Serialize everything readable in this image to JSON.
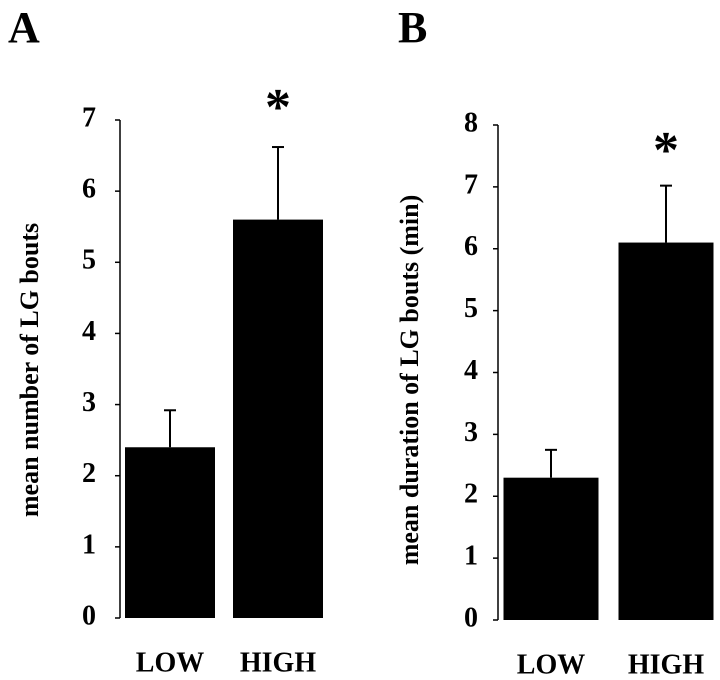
{
  "chart_data": [
    {
      "type": "bar",
      "panel": "A",
      "y_label": "mean number of LG bouts",
      "categories": [
        "LOW",
        "HIGH"
      ],
      "values": [
        2.4,
        5.6
      ],
      "errors": [
        0.52,
        1.02
      ],
      "annotation": "*",
      "color": "#000000",
      "ylim": [
        0,
        7
      ],
      "yticks": [
        0,
        1,
        2,
        3,
        4,
        5,
        6,
        7
      ]
    },
    {
      "type": "bar",
      "panel": "B",
      "y_label": "mean duration of LG bouts (min)",
      "categories": [
        "LOW",
        "HIGH"
      ],
      "values": [
        2.3,
        6.1
      ],
      "errors": [
        0.45,
        0.92
      ],
      "annotation": "*",
      "color": "#000000",
      "ylim": [
        0,
        8
      ],
      "yticks": [
        0,
        1,
        2,
        3,
        4,
        5,
        6,
        7,
        8
      ]
    }
  ]
}
